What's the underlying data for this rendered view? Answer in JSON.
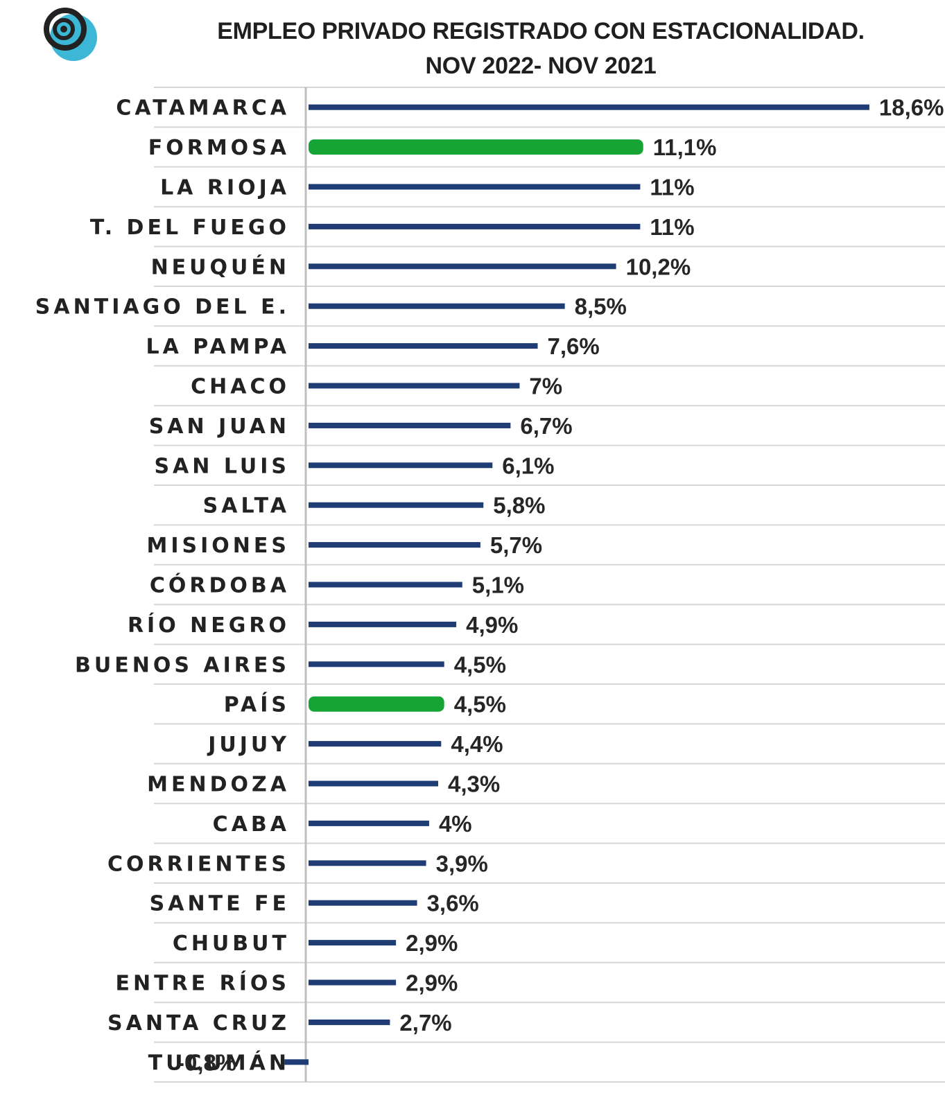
{
  "colors": {
    "bar": "#1f3c74",
    "highlight": "#16a535",
    "grid": "#d6d6d6",
    "axis": "#bfbfbf",
    "logo_ring": "#222222",
    "logo_fill": "#3cb8d6"
  },
  "logo": {
    "icon": "spiral-logo-icon"
  },
  "chart_data": {
    "type": "bar",
    "orientation": "horizontal",
    "title": "EMPLEO PRIVADO REGISTRADO CON ESTACIONALIDAD.",
    "subtitle": "NOV 2022- NOV 2021",
    "xlabel": "",
    "ylabel": "",
    "xlim": [
      -1,
      19.2
    ],
    "grid": true,
    "legend": "none",
    "value_format": "percent, comma decimal",
    "categories": [
      "CATAMARCA",
      "FORMOSA",
      "LA RIOJA",
      "T. DEL FUEGO",
      "NEUQUÉN",
      "SANTIAGO DEL E.",
      "LA PAMPA",
      "CHACO",
      "SAN JUAN",
      "SAN LUIS",
      "SALTA",
      "MISIONES",
      "CÓRDOBA",
      "RÍO NEGRO",
      "BUENOS AIRES",
      "PAÍS",
      "JUJUY",
      "MENDOZA",
      "CABA",
      "CORRIENTES",
      "SANTE FE",
      "CHUBUT",
      "ENTRE RÍOS",
      "SANTA CRUZ",
      "TUCUMÁN"
    ],
    "values": [
      18.6,
      11.1,
      11,
      11,
      10.2,
      8.5,
      7.6,
      7,
      6.7,
      6.1,
      5.8,
      5.7,
      5.1,
      4.9,
      4.5,
      4.5,
      4.4,
      4.3,
      4,
      3.9,
      3.6,
      2.9,
      2.9,
      2.7,
      -0.8
    ],
    "data_labels": [
      "18,6%",
      "11,1%",
      "11%",
      "11%",
      "10,2%",
      "8,5%",
      "7,6%",
      "7%",
      "6,7%",
      "6,1%",
      "5,8%",
      "5,7%",
      "5,1%",
      "4,9%",
      "4,5%",
      "4,5%",
      "4,4%",
      "4,3%",
      "4%",
      "3,9%",
      "3,6%",
      "2,9%",
      "2,9%",
      "2,7%",
      "-0,8%"
    ],
    "highlighted": [
      "FORMOSA",
      "PAÍS"
    ]
  }
}
